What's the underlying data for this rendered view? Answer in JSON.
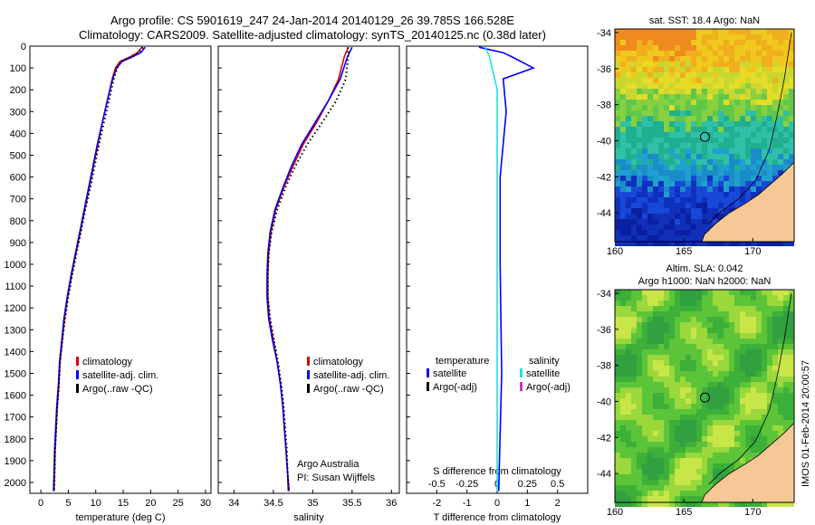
{
  "title_line1": "Argo profile: CS 5901619_247 24-Jan-2014 20140129_26 39.785S 166.528E",
  "title_line2": "Climatology: CARS2009. Satellite-adjusted climatology: synTS_20140125.nc (0.38d later)",
  "side_label": "IMOS 01-Feb-2014 20:00:57",
  "colors": {
    "climatology": "#e00000",
    "satellite": "#0000ff",
    "argo": "#000000",
    "salinity_sat": "#22e0e0",
    "salinity_argo": "#cc33cc"
  },
  "chart_data": [
    {
      "type": "line",
      "xlabel": "temperature (deg C)",
      "xlim": [
        -2,
        31
      ],
      "xticks": [
        0,
        5,
        10,
        15,
        20,
        25,
        30
      ],
      "ylim": [
        0,
        2050
      ],
      "yticks": [
        0,
        100,
        200,
        300,
        400,
        500,
        600,
        700,
        800,
        900,
        1000,
        1100,
        1200,
        1300,
        1400,
        1500,
        1600,
        1700,
        1800,
        1900,
        2000
      ],
      "legend": [
        "climatology",
        "satellite-adj. clim.",
        "Argo(..raw -QC)"
      ],
      "series": [
        {
          "name": "climatology",
          "color": "#e00000",
          "style": "solid",
          "points": [
            [
              18.4,
              5
            ],
            [
              17.6,
              30
            ],
            [
              16.2,
              50
            ],
            [
              14.4,
              70
            ],
            [
              13.6,
              100
            ],
            [
              13.0,
              150
            ],
            [
              12.1,
              250
            ],
            [
              11.2,
              350
            ],
            [
              10.4,
              450
            ],
            [
              9.6,
              550
            ],
            [
              8.8,
              650
            ],
            [
              8.0,
              750
            ],
            [
              7.2,
              850
            ],
            [
              6.4,
              950
            ],
            [
              5.6,
              1050
            ],
            [
              4.9,
              1150
            ],
            [
              4.3,
              1250
            ],
            [
              3.9,
              1350
            ],
            [
              3.5,
              1450
            ],
            [
              3.3,
              1550
            ],
            [
              3.0,
              1650
            ],
            [
              2.8,
              1750
            ],
            [
              2.6,
              1850
            ],
            [
              2.5,
              1950
            ],
            [
              2.4,
              2040
            ]
          ]
        },
        {
          "name": "satellite-adj. clim.",
          "color": "#0000ff",
          "style": "solid",
          "points": [
            [
              19.0,
              5
            ],
            [
              18.2,
              30
            ],
            [
              16.6,
              50
            ],
            [
              14.8,
              70
            ],
            [
              13.8,
              100
            ],
            [
              13.1,
              150
            ],
            [
              12.1,
              250
            ],
            [
              11.2,
              350
            ],
            [
              10.3,
              450
            ],
            [
              9.5,
              550
            ],
            [
              8.7,
              650
            ],
            [
              7.9,
              750
            ],
            [
              7.1,
              850
            ],
            [
              6.3,
              950
            ],
            [
              5.5,
              1050
            ],
            [
              4.8,
              1150
            ],
            [
              4.2,
              1250
            ],
            [
              3.8,
              1350
            ],
            [
              3.4,
              1450
            ],
            [
              3.2,
              1550
            ],
            [
              2.9,
              1650
            ],
            [
              2.7,
              1750
            ],
            [
              2.5,
              1850
            ],
            [
              2.4,
              1950
            ],
            [
              2.3,
              2040
            ]
          ]
        },
        {
          "name": "Argo(..raw -QC)",
          "color": "#000000",
          "style": "dotted",
          "points": [
            [
              18.6,
              5
            ],
            [
              17.8,
              30
            ],
            [
              16.4,
              50
            ],
            [
              14.6,
              70
            ],
            [
              13.9,
              100
            ],
            [
              13.3,
              150
            ],
            [
              12.4,
              250
            ],
            [
              11.5,
              350
            ],
            [
              10.6,
              450
            ],
            [
              9.8,
              550
            ],
            [
              9.0,
              650
            ],
            [
              8.1,
              750
            ],
            [
              7.3,
              850
            ],
            [
              6.5,
              950
            ],
            [
              5.7,
              1050
            ],
            [
              5.0,
              1150
            ],
            [
              4.4,
              1250
            ],
            [
              3.9,
              1350
            ],
            [
              3.5,
              1450
            ],
            [
              3.3,
              1550
            ],
            [
              3.0,
              1650
            ],
            [
              2.8,
              1750
            ],
            [
              2.6,
              1850
            ],
            [
              2.5,
              1950
            ],
            [
              2.4,
              2040
            ]
          ]
        }
      ]
    },
    {
      "type": "line",
      "xlabel": "salinity",
      "xlim": [
        33.8,
        36.1
      ],
      "xticks": [
        34,
        34.5,
        35,
        35.5,
        36
      ],
      "ylim": [
        0,
        2050
      ],
      "legend": [
        "climatology",
        "satellite-adj. clim.",
        "Argo(..raw -QC)"
      ],
      "annotation": [
        "Argo Australia",
        "PI: Susan Wijffels"
      ],
      "series": [
        {
          "name": "climatology",
          "color": "#e00000",
          "style": "solid",
          "points": [
            [
              35.45,
              5
            ],
            [
              35.4,
              50
            ],
            [
              35.33,
              150
            ],
            [
              35.2,
              250
            ],
            [
              35.05,
              350
            ],
            [
              34.88,
              450
            ],
            [
              34.75,
              550
            ],
            [
              34.63,
              650
            ],
            [
              34.53,
              750
            ],
            [
              34.47,
              850
            ],
            [
              34.44,
              950
            ],
            [
              34.43,
              1050
            ],
            [
              34.43,
              1150
            ],
            [
              34.45,
              1250
            ],
            [
              34.5,
              1350
            ],
            [
              34.55,
              1450
            ],
            [
              34.59,
              1550
            ],
            [
              34.62,
              1650
            ],
            [
              34.64,
              1750
            ],
            [
              34.66,
              1850
            ],
            [
              34.68,
              1950
            ],
            [
              34.7,
              2040
            ]
          ]
        },
        {
          "name": "satellite-adj. clim.",
          "color": "#0000ff",
          "style": "solid",
          "points": [
            [
              35.5,
              5
            ],
            [
              35.44,
              50
            ],
            [
              35.35,
              150
            ],
            [
              35.2,
              250
            ],
            [
              35.03,
              350
            ],
            [
              34.86,
              450
            ],
            [
              34.73,
              550
            ],
            [
              34.62,
              650
            ],
            [
              34.52,
              750
            ],
            [
              34.46,
              850
            ],
            [
              34.43,
              950
            ],
            [
              34.42,
              1050
            ],
            [
              34.42,
              1150
            ],
            [
              34.44,
              1250
            ],
            [
              34.49,
              1350
            ],
            [
              34.55,
              1450
            ],
            [
              34.59,
              1550
            ],
            [
              34.62,
              1650
            ],
            [
              34.64,
              1750
            ],
            [
              34.66,
              1850
            ],
            [
              34.68,
              1950
            ],
            [
              34.69,
              2040
            ]
          ]
        },
        {
          "name": "Argo(..raw -QC)",
          "color": "#000000",
          "style": "dotted",
          "points": [
            [
              35.45,
              5
            ],
            [
              35.45,
              50
            ],
            [
              35.42,
              150
            ],
            [
              35.3,
              250
            ],
            [
              35.12,
              350
            ],
            [
              34.93,
              450
            ],
            [
              34.78,
              550
            ],
            [
              34.65,
              650
            ],
            [
              34.55,
              750
            ],
            [
              34.48,
              850
            ],
            [
              34.44,
              950
            ],
            [
              34.43,
              1050
            ],
            [
              34.43,
              1150
            ],
            [
              34.46,
              1250
            ],
            [
              34.51,
              1350
            ],
            [
              34.56,
              1450
            ],
            [
              34.6,
              1550
            ],
            [
              34.63,
              1650
            ],
            [
              34.65,
              1750
            ],
            [
              34.67,
              1850
            ],
            [
              34.68,
              1950
            ],
            [
              34.7,
              2040
            ]
          ]
        }
      ]
    },
    {
      "type": "line",
      "xlabel": "T difference from climatology",
      "xlabel2": "S difference from climatology",
      "xlim": [
        -3,
        3
      ],
      "xticks": [
        -2,
        -1,
        0,
        1,
        2
      ],
      "xticks2": [
        "-0.5",
        "-0.25",
        "0",
        "0.25",
        "0.5"
      ],
      "ylim": [
        0,
        2050
      ],
      "legend_headers": [
        "temperature",
        "salinity"
      ],
      "legend": [
        "satellite",
        "Argo(-adj)",
        "satellite",
        "Argo(-adj)"
      ],
      "series": [
        {
          "name": "temperature satellite",
          "color": "#0000ff",
          "points": [
            [
              -0.6,
              5
            ],
            [
              0.2,
              30
            ],
            [
              0.5,
              50
            ],
            [
              1.2,
              100
            ],
            [
              0.2,
              150
            ],
            [
              0.3,
              300
            ],
            [
              0.1,
              600
            ],
            [
              0.1,
              1000
            ],
            [
              0.15,
              1500
            ],
            [
              0.05,
              2040
            ]
          ]
        },
        {
          "name": "salinity satellite",
          "color": "#22e0e0",
          "points": [
            [
              -0.4,
              5
            ],
            [
              -0.25,
              50
            ],
            [
              0,
              200
            ],
            [
              0,
              600
            ],
            [
              0,
              1000
            ],
            [
              0,
              1500
            ],
            [
              0,
              2040
            ]
          ]
        }
      ]
    },
    {
      "type": "heatmap",
      "title": "sat. SST: 18.4 Argo: NaN",
      "xlim": [
        160,
        173
      ],
      "ylim": [
        -45.6,
        -33.8
      ],
      "xticks": [
        160,
        165,
        170
      ],
      "yticks": [
        -34,
        -36,
        -38,
        -40,
        -42,
        -44
      ],
      "marker": [
        166.53,
        -39.79
      ]
    },
    {
      "type": "heatmap",
      "title": [
        "Altim. SLA: 0.042",
        "Argo h1000: NaN h2000: NaN"
      ],
      "xlim": [
        160,
        173
      ],
      "ylim": [
        -45.6,
        -33.8
      ],
      "xticks": [
        160,
        165,
        170
      ],
      "yticks": [
        -34,
        -36,
        -38,
        -40,
        -42,
        -44
      ],
      "marker": [
        166.53,
        -39.79
      ]
    }
  ]
}
